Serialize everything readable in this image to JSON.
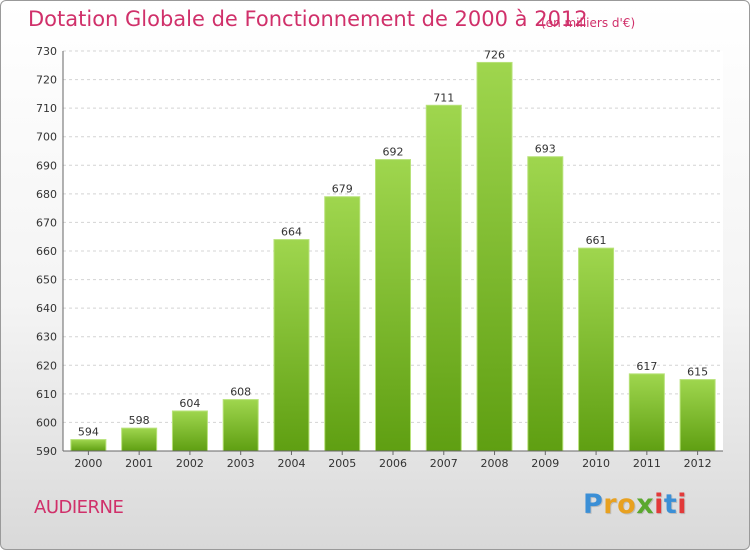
{
  "header": {
    "title": "Dotation Globale de Fonctionnement de 2000 à 2012",
    "unit": "(en milliers d'€)"
  },
  "footer": {
    "commune": "AUDIERNE",
    "logo": {
      "text": "Proxiti",
      "colors": [
        "#3b8fd6",
        "#e8a120",
        "#e8a120",
        "#5aa82e",
        "#e23a3a",
        "#3b8fd6",
        "#e23a3a"
      ]
    }
  },
  "chart_data": {
    "type": "bar",
    "categories": [
      "2000",
      "2001",
      "2002",
      "2003",
      "2004",
      "2005",
      "2006",
      "2007",
      "2008",
      "2009",
      "2010",
      "2011",
      "2012"
    ],
    "values": [
      594,
      598,
      604,
      608,
      664,
      679,
      692,
      711,
      726,
      693,
      661,
      617,
      615
    ],
    "title": "Dotation Globale de Fonctionnement de 2000 à 2012",
    "ylim": [
      590,
      730
    ],
    "yticks": [
      590,
      600,
      610,
      620,
      630,
      640,
      650,
      660,
      670,
      680,
      690,
      700,
      710,
      720,
      730
    ],
    "grid": true,
    "bar_color": "#7cc230"
  }
}
